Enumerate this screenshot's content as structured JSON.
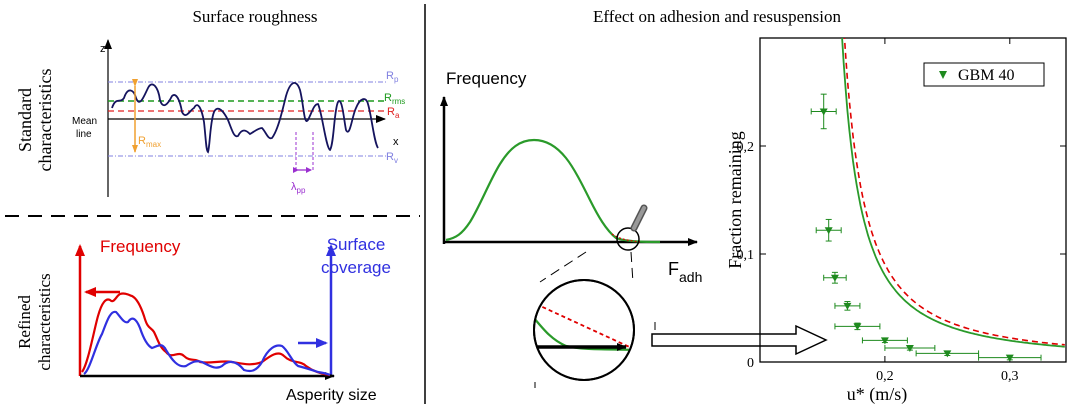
{
  "colors": {
    "profile": "#15145e",
    "rp": "#8080e0",
    "rrms": "#1e9a1e",
    "ra": "#e02020",
    "rmax": "#f0a030",
    "lambda": "#9b30d0",
    "frequency_red": "#e00000",
    "coverage_blue": "#3030e0",
    "green": "#2a9a2a",
    "black": "#000000"
  },
  "panels": {
    "roughness": {
      "title": "Surface roughness",
      "z_axis": "z",
      "x_axis": "x",
      "mean_line_1": "Mean",
      "mean_line_2": "line",
      "rp": {
        "base": "R",
        "sub": "p"
      },
      "rrms": {
        "base": "R",
        "sub": "rms"
      },
      "ra": {
        "base": "R",
        "sub": "a"
      },
      "rmax": {
        "base": "R",
        "sub": "max"
      },
      "rv": {
        "base": "R",
        "sub": "v"
      },
      "lambda": {
        "base": "λ",
        "sub": "pp"
      }
    },
    "standard_label_1": "Standard",
    "standard_label_2": "characteristics",
    "refined_label_1": "Refined",
    "refined_label_2": "characteristics",
    "refined": {
      "frequency": "Frequency",
      "coverage_1": "Surface",
      "coverage_2": "coverage",
      "xlabel": "Asperity size"
    },
    "adhesion": {
      "title": "Effect on adhesion and resuspension",
      "frequency": "Frequency",
      "fadh": {
        "base": "F",
        "sub": "adh"
      }
    }
  },
  "chart_data": {
    "type": "scatter",
    "xlabel": "u* (m/s)",
    "ylabel": "Fraction remaining",
    "xlim": [
      0.1,
      0.345
    ],
    "ylim": [
      0,
      0.3
    ],
    "xticks": [
      {
        "value": 0.2,
        "label": "0,2"
      },
      {
        "value": 0.3,
        "label": "0,3"
      }
    ],
    "yticks": [
      {
        "value": 0,
        "label": "0"
      },
      {
        "value": 0.1,
        "label": "0,1"
      },
      {
        "value": 0.2,
        "label": "0,2"
      }
    ],
    "legend_position": "top-right",
    "series": [
      {
        "name": "GBM 40",
        "color": "#1e8a1e",
        "marker": "triangle-down",
        "points": [
          {
            "x": 0.151,
            "y": 0.232,
            "xerr": 0.01,
            "yerr": 0.016
          },
          {
            "x": 0.155,
            "y": 0.122,
            "xerr": 0.01,
            "yerr": 0.01
          },
          {
            "x": 0.16,
            "y": 0.078,
            "xerr": 0.009,
            "yerr": 0.005
          },
          {
            "x": 0.17,
            "y": 0.052,
            "xerr": 0.01,
            "yerr": 0.004
          },
          {
            "x": 0.178,
            "y": 0.033,
            "xerr": 0.018,
            "yerr": 0.003
          },
          {
            "x": 0.2,
            "y": 0.02,
            "xerr": 0.018,
            "yerr": 0.002
          },
          {
            "x": 0.22,
            "y": 0.013,
            "xerr": 0.02,
            "yerr": 0.002
          },
          {
            "x": 0.25,
            "y": 0.008,
            "xerr": 0.025,
            "yerr": 0.002
          },
          {
            "x": 0.3,
            "y": 0.004,
            "xerr": 0.025,
            "yerr": 0.002
          }
        ]
      }
    ]
  }
}
